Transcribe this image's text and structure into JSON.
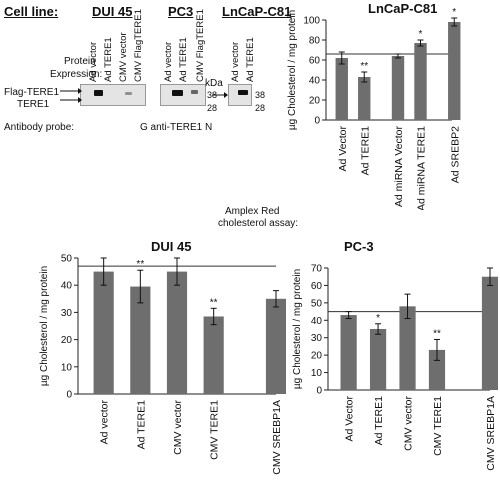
{
  "blot": {
    "cell_line_label": "Cell line:",
    "cell_lines": [
      "DUI 45",
      "PC3",
      "LnCaP-C81"
    ],
    "protein_label_1": "Protein",
    "protein_label_2": "Expression:",
    "lanes_dui45": [
      "Ad vector",
      "Ad  TERE1",
      "CMV vector",
      "CMV FlagTERE1"
    ],
    "lanes_pc3": [
      "Ad vector",
      "Ad  TERE1",
      "CMV FlagTERE1"
    ],
    "lanes_lncap": [
      "Ad vector",
      "Ad  TERE1"
    ],
    "kda": "kDa",
    "markers": [
      "38",
      "28"
    ],
    "band_labels": [
      "Flag-TERE1",
      "TERE1"
    ],
    "antibody_label": "Antibody probe:",
    "antibody_value": "G anti-TERE1 N",
    "assay_label_1": "Amplex Red",
    "assay_label_2": "cholesterol assay:"
  },
  "chart_data": [
    {
      "type": "bar",
      "title": "LnCaP-C81",
      "ylabel": "µg Cholesterol / mg protein",
      "ylim": [
        0,
        100
      ],
      "yticks": [
        0,
        20,
        40,
        60,
        80,
        100
      ],
      "categories": [
        "Ad Vector",
        "Ad TERE1",
        "Ad miRNA Vector",
        "Ad miRNA TERE1",
        "Ad SREBP2"
      ],
      "values": [
        62,
        43,
        64,
        77,
        98
      ],
      "errors": [
        6,
        5,
        2,
        3,
        4
      ],
      "significance": [
        "",
        "**",
        "",
        "*",
        "*"
      ],
      "reference_line": 66,
      "color": "#6e6e6e"
    },
    {
      "type": "bar",
      "title": "DUI 45",
      "ylabel": "µg Cholesterol / mg protein",
      "ylim": [
        0,
        50
      ],
      "yticks": [
        0,
        10,
        20,
        30,
        40,
        50
      ],
      "categories": [
        "Ad vector",
        "Ad  TERE1",
        "CMV vector",
        "CMV  TERE1",
        "CMV  SREBP1A"
      ],
      "values": [
        45,
        39.5,
        45,
        28.5,
        35
      ],
      "errors": [
        5,
        6,
        5,
        3,
        3
      ],
      "significance": [
        "",
        "**",
        "",
        "**",
        ""
      ],
      "reference_line": 47,
      "color": "#6e6e6e"
    },
    {
      "type": "bar",
      "title": "PC-3",
      "ylabel": "µg Cholesterol / mg protein",
      "ylim": [
        0,
        70
      ],
      "yticks": [
        0,
        10,
        20,
        30,
        40,
        50,
        60,
        70
      ],
      "categories": [
        "Ad Vector",
        "Ad  TERE1",
        "CMV vector",
        "CMV  TERE1",
        "CMV  SREBP1A"
      ],
      "values": [
        43,
        35,
        48,
        23,
        65
      ],
      "errors": [
        2,
        3,
        7,
        6,
        5
      ],
      "significance": [
        "",
        "*",
        "",
        "**",
        ""
      ],
      "reference_line": 45,
      "color": "#6e6e6e"
    }
  ]
}
